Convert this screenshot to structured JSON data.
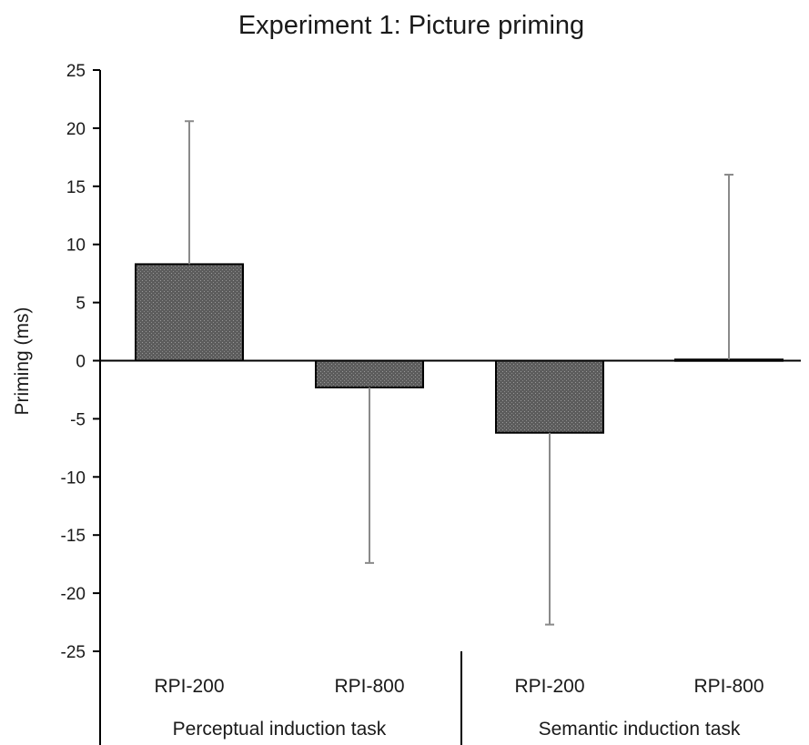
{
  "chart_data": {
    "type": "bar",
    "title": "Experiment 1: Picture priming",
    "ylabel": "Priming (ms)",
    "xlabel": "",
    "ylim": [
      -25,
      25
    ],
    "yticks": [
      25,
      20,
      15,
      10,
      5,
      0,
      -5,
      -10,
      -15,
      -20,
      -25
    ],
    "categories": [
      "RPI-200",
      "RPI-800",
      "RPI-200",
      "RPI-800"
    ],
    "groups": [
      {
        "label": "Perceptual induction task",
        "categories": [
          0,
          1
        ]
      },
      {
        "label": "Semantic induction task",
        "categories": [
          2,
          3
        ]
      }
    ],
    "values": [
      8.3,
      -2.3,
      -6.2,
      0.1
    ],
    "error_upper": [
      20.6,
      null,
      null,
      16.0
    ],
    "error_lower": [
      null,
      -17.4,
      -22.7,
      null
    ],
    "grid": false,
    "legend": "none",
    "bar_color": "#5a5a5a",
    "error_color": "#8a8a8a"
  }
}
